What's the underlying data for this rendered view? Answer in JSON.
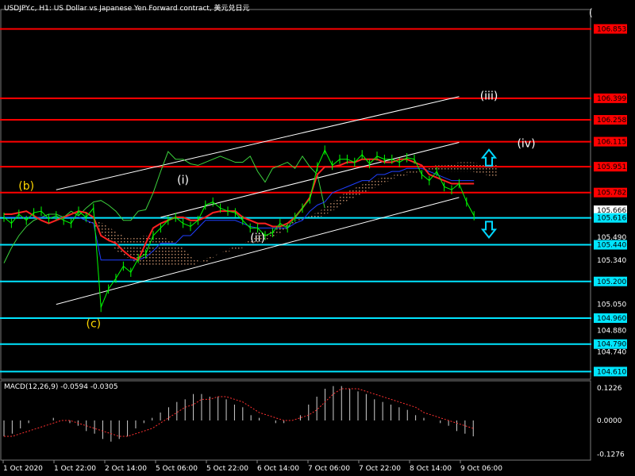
{
  "header": {
    "title": "USDJPY.c, H1:  US Dollar vs Japanese Yen Forward contract, 美元兑日元",
    "macd_label": "MACD(12,26,9) -0.0594 -0.0305",
    "corner_mark": "("
  },
  "colors": {
    "background": "#000000",
    "grid": "#2a2a2a",
    "price": "#00ff00",
    "red_level": "#ff0000",
    "cyan_level": "#00e5ff",
    "tenkan": "#ff2020",
    "kijun": "#1f3fff",
    "chikou": "#3cd23c",
    "cloud": "#b08060",
    "channel": "#ffffff",
    "wave_label_white": "#ffffff",
    "wave_label_yellow": "#ffd700",
    "arrow": "#00d7ff"
  },
  "chart_data": [
    {
      "type": "candlestick",
      "symbol": "USDJPY.c",
      "timeframe": "H1",
      "ylim": [
        104.56,
        106.98
      ],
      "price_axis_labels": [
        "106.853",
        "106.399",
        "106.258",
        "106.115",
        "105.951",
        "105.782",
        "105.666",
        "105.616",
        "105.490",
        "105.440",
        "105.340",
        "105.200",
        "105.050",
        "104.960",
        "104.880",
        "104.790",
        "104.740",
        "104.610"
      ],
      "red_levels": [
        106.853,
        106.399,
        106.258,
        106.115,
        105.951,
        105.782
      ],
      "cyan_levels": [
        105.616,
        105.44,
        105.2,
        104.96,
        104.79,
        104.61
      ],
      "current_price": 105.666,
      "x_tick_labels": [
        "1 Oct 2020",
        "1 Oct 22:00",
        "2 Oct 14:00",
        "5 Oct 06:00",
        "5 Oct 22:00",
        "6 Oct 14:00",
        "7 Oct 06:00",
        "7 Oct 22:00",
        "8 Oct 14:00",
        "9 Oct 06:00"
      ],
      "price_series": [
        105.62,
        105.58,
        105.64,
        105.6,
        105.65,
        105.66,
        105.61,
        105.63,
        105.6,
        105.58,
        105.66,
        105.62,
        105.68,
        105.03,
        105.15,
        105.22,
        105.3,
        105.26,
        105.35,
        105.38,
        105.5,
        105.55,
        105.6,
        105.62,
        105.58,
        105.56,
        105.6,
        105.7,
        105.72,
        105.68,
        105.66,
        105.65,
        105.6,
        105.55,
        105.55,
        105.5,
        105.52,
        105.58,
        105.55,
        105.62,
        105.68,
        105.74,
        105.95,
        106.06,
        105.96,
        106.0,
        106.0,
        105.98,
        106.03,
        105.97,
        106.02,
        106.0,
        106.0,
        105.98,
        106.01,
        106.0,
        105.9,
        105.86,
        105.92,
        105.82,
        105.8,
        105.84,
        105.72,
        105.63
      ],
      "tenkan_sen": [
        105.64,
        105.64,
        105.65,
        105.66,
        105.63,
        105.6,
        105.58,
        105.6,
        105.62,
        105.64,
        105.66,
        105.65,
        105.62,
        105.5,
        105.47,
        105.45,
        105.4,
        105.36,
        105.34,
        105.45,
        105.55,
        105.58,
        105.6,
        105.62,
        105.62,
        105.6,
        105.6,
        105.62,
        105.65,
        105.66,
        105.66,
        105.66,
        105.62,
        105.6,
        105.58,
        105.58,
        105.56,
        105.56,
        105.58,
        105.62,
        105.68,
        105.75,
        105.9,
        105.95,
        105.95,
        105.96,
        105.98,
        105.98,
        106.0,
        106.0,
        106.0,
        105.98,
        105.98,
        106.0,
        106.0,
        105.98,
        105.96,
        105.9,
        105.88,
        105.86,
        105.84,
        105.84,
        105.84,
        105.84
      ],
      "kijun_sen": [
        105.62,
        105.62,
        105.62,
        105.62,
        105.62,
        105.62,
        105.62,
        105.62,
        105.62,
        105.62,
        105.62,
        105.6,
        105.58,
        105.34,
        105.34,
        105.34,
        105.34,
        105.34,
        105.34,
        105.36,
        105.4,
        105.45,
        105.45,
        105.45,
        105.5,
        105.5,
        105.55,
        105.6,
        105.6,
        105.6,
        105.6,
        105.6,
        105.58,
        105.56,
        105.55,
        105.55,
        105.55,
        105.55,
        105.55,
        105.58,
        105.6,
        105.66,
        105.7,
        105.72,
        105.78,
        105.8,
        105.82,
        105.84,
        105.86,
        105.86,
        105.9,
        105.9,
        105.92,
        105.92,
        105.94,
        105.94,
        105.94,
        105.92,
        105.9,
        105.88,
        105.86,
        105.86,
        105.86,
        105.86
      ],
      "chikou_span": [
        105.32,
        105.42,
        105.5,
        105.56,
        105.6,
        105.62,
        105.64,
        105.64,
        105.62,
        105.66,
        105.63,
        105.68,
        105.72,
        105.73,
        105.7,
        105.66,
        105.6,
        105.6,
        105.66,
        105.67,
        105.78,
        105.92,
        106.05,
        106.0,
        106.0,
        105.97,
        105.96,
        105.98,
        106.0,
        106.02,
        106.0,
        105.98,
        105.98,
        106.02,
        105.92,
        105.85,
        105.94,
        105.96,
        105.98,
        105.94,
        106.02,
        105.95,
        105.9,
        105.68
      ],
      "cloud_span_a": [
        105.6,
        105.6,
        105.58,
        105.52,
        105.48,
        105.5,
        105.5,
        105.48,
        105.44,
        105.35,
        105.32,
        105.38,
        105.42,
        105.45,
        105.5,
        105.52,
        105.56,
        105.6,
        105.62,
        105.62,
        105.66,
        105.72,
        105.76,
        105.8,
        105.84,
        105.88,
        105.9,
        105.92,
        105.96,
        105.96,
        105.98,
        105.98,
        105.97,
        105.97
      ],
      "cloud_span_b": [
        105.6,
        105.58,
        105.5,
        105.4,
        105.35,
        105.3,
        105.3,
        105.3,
        105.3,
        105.3,
        105.35,
        105.38,
        105.4,
        105.42,
        105.45,
        105.48,
        105.52,
        105.58,
        105.62,
        105.66,
        105.72,
        105.78,
        105.82,
        105.86,
        105.88,
        105.9,
        105.92,
        105.92,
        105.92,
        105.92,
        105.92,
        105.92,
        105.9,
        105.88
      ],
      "wave_labels": [
        {
          "text": "(b)",
          "color": "yellow",
          "bar": 3,
          "price": 105.8
        },
        {
          "text": "(c)",
          "color": "yellow",
          "bar": 12,
          "price": 104.9
        },
        {
          "text": "(i)",
          "color": "white",
          "bar": 24,
          "price": 105.84
        },
        {
          "text": "(ii)",
          "color": "white",
          "bar": 34,
          "price": 105.46
        },
        {
          "text": "(iii)",
          "color": "white",
          "bar": 65,
          "price": 106.39
        },
        {
          "text": "(iv)",
          "color": "white",
          "bar": 70,
          "price": 106.08
        }
      ],
      "arrows": [
        {
          "direction": "up",
          "bar": 65,
          "price": 106.0
        },
        {
          "direction": "down",
          "bar": 65,
          "price": 105.55
        }
      ],
      "channel_lines": [
        {
          "x0": 7,
          "y0": 105.8,
          "x1": 61,
          "y1": 106.41
        },
        {
          "x0": 7,
          "y0": 105.05,
          "x1": 61,
          "y1": 105.75
        },
        {
          "x0": 21,
          "y0": 105.62,
          "x1": 61,
          "y1": 106.11
        }
      ]
    },
    {
      "type": "histogram",
      "name": "MACD(12,26,9)",
      "ylim": [
        -0.15,
        0.15
      ],
      "axis_labels": [
        "0.1226",
        "0.0000",
        "-0.1276"
      ],
      "macd": [
        -0.06,
        -0.05,
        -0.03,
        -0.01,
        0.0,
        0.0,
        0.01,
        0.0,
        -0.01,
        -0.02,
        -0.04,
        -0.05,
        -0.07,
        -0.08,
        -0.07,
        -0.06,
        -0.03,
        -0.01,
        0.01,
        0.03,
        0.05,
        0.07,
        0.08,
        0.1,
        0.1,
        0.09,
        0.09,
        0.08,
        0.06,
        0.05,
        0.02,
        0.01,
        0.0,
        -0.01,
        -0.01,
        0.0,
        0.02,
        0.06,
        0.09,
        0.12,
        0.13,
        0.13,
        0.12,
        0.11,
        0.1,
        0.08,
        0.07,
        0.06,
        0.05,
        0.04,
        0.02,
        0.01,
        0.0,
        -0.01,
        -0.02,
        -0.04,
        -0.05,
        -0.06
      ],
      "signal": [
        -0.06,
        -0.06,
        -0.05,
        -0.04,
        -0.03,
        -0.02,
        -0.01,
        0.0,
        0.0,
        -0.01,
        -0.02,
        -0.03,
        -0.04,
        -0.05,
        -0.06,
        -0.06,
        -0.05,
        -0.04,
        -0.03,
        -0.01,
        0.01,
        0.03,
        0.05,
        0.06,
        0.08,
        0.08,
        0.09,
        0.09,
        0.08,
        0.07,
        0.05,
        0.03,
        0.02,
        0.01,
        0.0,
        0.0,
        0.01,
        0.02,
        0.04,
        0.07,
        0.1,
        0.12,
        0.12,
        0.12,
        0.11,
        0.1,
        0.09,
        0.08,
        0.07,
        0.06,
        0.05,
        0.03,
        0.02,
        0.01,
        0.0,
        -0.01,
        -0.02,
        -0.03
      ]
    }
  ]
}
